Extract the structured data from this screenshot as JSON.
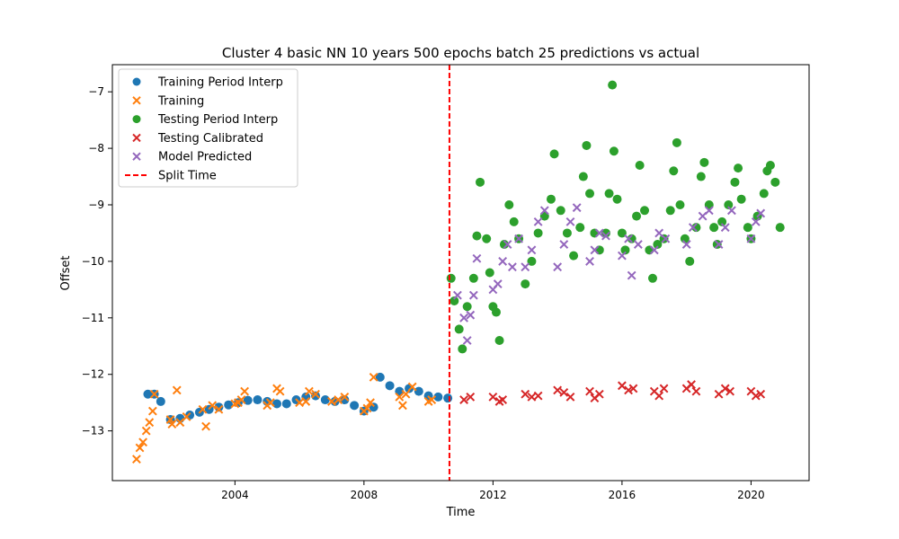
{
  "chart_data": {
    "type": "scatter",
    "title": "Cluster 4 basic NN 10 years 500 epochs batch 25 predictions vs actual",
    "xlabel": "Time",
    "ylabel": "Offset",
    "xlim": [
      2000.2,
      2021.8
    ],
    "ylim": [
      -13.88,
      -6.52
    ],
    "x_ticks": [
      2004,
      2008,
      2012,
      2016,
      2020
    ],
    "y_ticks": [
      -13,
      -12,
      -11,
      -10,
      -9,
      -8,
      -7
    ],
    "grid": false,
    "legend_position": "upper-left",
    "split_time": 2010.65,
    "series": [
      {
        "name": "Training Period Interp",
        "marker": "circle",
        "color": "#1f77b4",
        "points": [
          [
            2001.3,
            -12.35
          ],
          [
            2001.5,
            -12.35
          ],
          [
            2001.7,
            -12.48
          ],
          [
            2002.0,
            -12.8
          ],
          [
            2002.3,
            -12.78
          ],
          [
            2002.6,
            -12.72
          ],
          [
            2002.9,
            -12.67
          ],
          [
            2003.2,
            -12.62
          ],
          [
            2003.5,
            -12.58
          ],
          [
            2003.8,
            -12.54
          ],
          [
            2004.1,
            -12.5
          ],
          [
            2004.4,
            -12.46
          ],
          [
            2004.7,
            -12.45
          ],
          [
            2005.0,
            -12.48
          ],
          [
            2005.3,
            -12.52
          ],
          [
            2005.6,
            -12.52
          ],
          [
            2005.9,
            -12.45
          ],
          [
            2006.2,
            -12.4
          ],
          [
            2006.5,
            -12.38
          ],
          [
            2006.8,
            -12.45
          ],
          [
            2007.1,
            -12.48
          ],
          [
            2007.4,
            -12.45
          ],
          [
            2007.7,
            -12.55
          ],
          [
            2008.0,
            -12.65
          ],
          [
            2008.3,
            -12.58
          ],
          [
            2008.5,
            -12.05
          ],
          [
            2008.8,
            -12.2
          ],
          [
            2009.1,
            -12.3
          ],
          [
            2009.4,
            -12.25
          ],
          [
            2009.7,
            -12.3
          ],
          [
            2010.0,
            -12.38
          ],
          [
            2010.3,
            -12.4
          ],
          [
            2010.6,
            -12.42
          ]
        ]
      },
      {
        "name": "Training",
        "marker": "x",
        "color": "#ff7f0e",
        "points": [
          [
            2000.95,
            -13.5
          ],
          [
            2001.05,
            -13.3
          ],
          [
            2001.15,
            -13.2
          ],
          [
            2001.25,
            -13.0
          ],
          [
            2001.35,
            -12.85
          ],
          [
            2001.45,
            -12.65
          ],
          [
            2001.5,
            -12.35
          ],
          [
            2002.0,
            -12.8
          ],
          [
            2002.05,
            -12.88
          ],
          [
            2002.2,
            -12.28
          ],
          [
            2002.3,
            -12.85
          ],
          [
            2002.5,
            -12.75
          ],
          [
            2003.0,
            -12.62
          ],
          [
            2003.1,
            -12.92
          ],
          [
            2003.3,
            -12.55
          ],
          [
            2003.5,
            -12.62
          ],
          [
            2004.0,
            -12.52
          ],
          [
            2004.1,
            -12.5
          ],
          [
            2004.2,
            -12.45
          ],
          [
            2004.3,
            -12.3
          ],
          [
            2005.0,
            -12.55
          ],
          [
            2005.1,
            -12.5
          ],
          [
            2005.3,
            -12.25
          ],
          [
            2005.4,
            -12.3
          ],
          [
            2006.0,
            -12.5
          ],
          [
            2006.2,
            -12.48
          ],
          [
            2006.3,
            -12.3
          ],
          [
            2006.5,
            -12.35
          ],
          [
            2007.0,
            -12.48
          ],
          [
            2007.2,
            -12.45
          ],
          [
            2007.4,
            -12.4
          ],
          [
            2008.0,
            -12.65
          ],
          [
            2008.1,
            -12.6
          ],
          [
            2008.2,
            -12.5
          ],
          [
            2008.3,
            -12.05
          ],
          [
            2009.1,
            -12.4
          ],
          [
            2009.2,
            -12.55
          ],
          [
            2009.3,
            -12.35
          ],
          [
            2009.5,
            -12.22
          ],
          [
            2010.0,
            -12.48
          ],
          [
            2010.1,
            -12.45
          ]
        ]
      },
      {
        "name": "Testing Period Interp",
        "marker": "circle",
        "color": "#2ca02c",
        "points": [
          [
            2010.7,
            -10.3
          ],
          [
            2010.8,
            -10.7
          ],
          [
            2010.95,
            -11.2
          ],
          [
            2011.05,
            -11.55
          ],
          [
            2011.2,
            -10.8
          ],
          [
            2011.4,
            -10.3
          ],
          [
            2011.5,
            -9.55
          ],
          [
            2011.6,
            -8.6
          ],
          [
            2011.8,
            -9.6
          ],
          [
            2011.9,
            -10.2
          ],
          [
            2012.0,
            -10.8
          ],
          [
            2012.1,
            -10.9
          ],
          [
            2012.2,
            -11.4
          ],
          [
            2012.35,
            -9.7
          ],
          [
            2012.5,
            -9.0
          ],
          [
            2012.65,
            -9.3
          ],
          [
            2012.8,
            -9.6
          ],
          [
            2013.0,
            -10.4
          ],
          [
            2013.2,
            -10.0
          ],
          [
            2013.4,
            -9.5
          ],
          [
            2013.6,
            -9.2
          ],
          [
            2013.8,
            -8.9
          ],
          [
            2013.9,
            -8.1
          ],
          [
            2014.1,
            -9.1
          ],
          [
            2014.3,
            -9.5
          ],
          [
            2014.5,
            -9.9
          ],
          [
            2014.7,
            -9.4
          ],
          [
            2014.8,
            -8.5
          ],
          [
            2014.9,
            -7.95
          ],
          [
            2015.0,
            -8.8
          ],
          [
            2015.15,
            -9.5
          ],
          [
            2015.3,
            -9.8
          ],
          [
            2015.5,
            -9.5
          ],
          [
            2015.6,
            -8.8
          ],
          [
            2015.7,
            -6.88
          ],
          [
            2015.75,
            -8.05
          ],
          [
            2015.85,
            -8.9
          ],
          [
            2016.0,
            -9.5
          ],
          [
            2016.1,
            -9.8
          ],
          [
            2016.3,
            -9.6
          ],
          [
            2016.45,
            -9.2
          ],
          [
            2016.55,
            -8.3
          ],
          [
            2016.7,
            -9.1
          ],
          [
            2016.85,
            -9.8
          ],
          [
            2016.95,
            -10.3
          ],
          [
            2017.1,
            -9.7
          ],
          [
            2017.3,
            -9.6
          ],
          [
            2017.5,
            -9.1
          ],
          [
            2017.6,
            -8.4
          ],
          [
            2017.7,
            -7.9
          ],
          [
            2017.8,
            -9.0
          ],
          [
            2017.95,
            -9.6
          ],
          [
            2018.1,
            -10.0
          ],
          [
            2018.3,
            -9.4
          ],
          [
            2018.45,
            -8.5
          ],
          [
            2018.55,
            -8.25
          ],
          [
            2018.7,
            -9.0
          ],
          [
            2018.85,
            -9.4
          ],
          [
            2018.95,
            -9.7
          ],
          [
            2019.1,
            -9.3
          ],
          [
            2019.3,
            -9.0
          ],
          [
            2019.5,
            -8.6
          ],
          [
            2019.6,
            -8.35
          ],
          [
            2019.7,
            -8.9
          ],
          [
            2019.9,
            -9.4
          ],
          [
            2020.0,
            -9.6
          ],
          [
            2020.2,
            -9.2
          ],
          [
            2020.4,
            -8.8
          ],
          [
            2020.5,
            -8.4
          ],
          [
            2020.6,
            -8.3
          ],
          [
            2020.75,
            -8.6
          ],
          [
            2020.9,
            -9.4
          ]
        ]
      },
      {
        "name": "Testing Calibrated",
        "marker": "x",
        "color": "#d62728",
        "points": [
          [
            2011.1,
            -12.45
          ],
          [
            2011.3,
            -12.4
          ],
          [
            2012.0,
            -12.4
          ],
          [
            2012.2,
            -12.48
          ],
          [
            2012.3,
            -12.45
          ],
          [
            2013.0,
            -12.35
          ],
          [
            2013.2,
            -12.4
          ],
          [
            2013.4,
            -12.38
          ],
          [
            2014.0,
            -12.28
          ],
          [
            2014.2,
            -12.32
          ],
          [
            2014.4,
            -12.4
          ],
          [
            2015.0,
            -12.3
          ],
          [
            2015.15,
            -12.42
          ],
          [
            2015.3,
            -12.35
          ],
          [
            2016.0,
            -12.2
          ],
          [
            2016.2,
            -12.28
          ],
          [
            2016.35,
            -12.25
          ],
          [
            2017.0,
            -12.3
          ],
          [
            2017.15,
            -12.38
          ],
          [
            2017.3,
            -12.25
          ],
          [
            2018.0,
            -12.25
          ],
          [
            2018.15,
            -12.18
          ],
          [
            2018.3,
            -12.3
          ],
          [
            2019.0,
            -12.35
          ],
          [
            2019.2,
            -12.25
          ],
          [
            2019.35,
            -12.3
          ],
          [
            2020.0,
            -12.3
          ],
          [
            2020.15,
            -12.38
          ],
          [
            2020.3,
            -12.35
          ]
        ]
      },
      {
        "name": "Model Predicted",
        "marker": "x",
        "color": "#9467bd",
        "points": [
          [
            2010.9,
            -10.6
          ],
          [
            2011.1,
            -11.0
          ],
          [
            2011.2,
            -11.4
          ],
          [
            2011.3,
            -10.95
          ],
          [
            2011.4,
            -10.6
          ],
          [
            2011.5,
            -9.95
          ],
          [
            2012.0,
            -10.5
          ],
          [
            2012.15,
            -10.4
          ],
          [
            2012.3,
            -10.0
          ],
          [
            2012.45,
            -9.7
          ],
          [
            2012.6,
            -10.1
          ],
          [
            2012.8,
            -9.6
          ],
          [
            2013.0,
            -10.1
          ],
          [
            2013.2,
            -9.8
          ],
          [
            2013.4,
            -9.3
          ],
          [
            2013.6,
            -9.1
          ],
          [
            2014.0,
            -10.1
          ],
          [
            2014.2,
            -9.7
          ],
          [
            2014.4,
            -9.3
          ],
          [
            2014.6,
            -9.05
          ],
          [
            2015.0,
            -10.0
          ],
          [
            2015.15,
            -9.8
          ],
          [
            2015.3,
            -9.5
          ],
          [
            2015.5,
            -9.55
          ],
          [
            2016.0,
            -9.9
          ],
          [
            2016.2,
            -9.6
          ],
          [
            2016.3,
            -10.25
          ],
          [
            2016.5,
            -9.7
          ],
          [
            2017.0,
            -9.8
          ],
          [
            2017.15,
            -9.5
          ],
          [
            2017.35,
            -9.6
          ],
          [
            2018.0,
            -9.7
          ],
          [
            2018.2,
            -9.4
          ],
          [
            2018.5,
            -9.2
          ],
          [
            2018.7,
            -9.1
          ],
          [
            2019.0,
            -9.7
          ],
          [
            2019.2,
            -9.4
          ],
          [
            2019.4,
            -9.1
          ],
          [
            2020.0,
            -9.6
          ],
          [
            2020.15,
            -9.3
          ],
          [
            2020.3,
            -9.15
          ]
        ]
      },
      {
        "name": "Split Time",
        "marker": "dashed-line",
        "color": "#ff0000"
      }
    ]
  }
}
